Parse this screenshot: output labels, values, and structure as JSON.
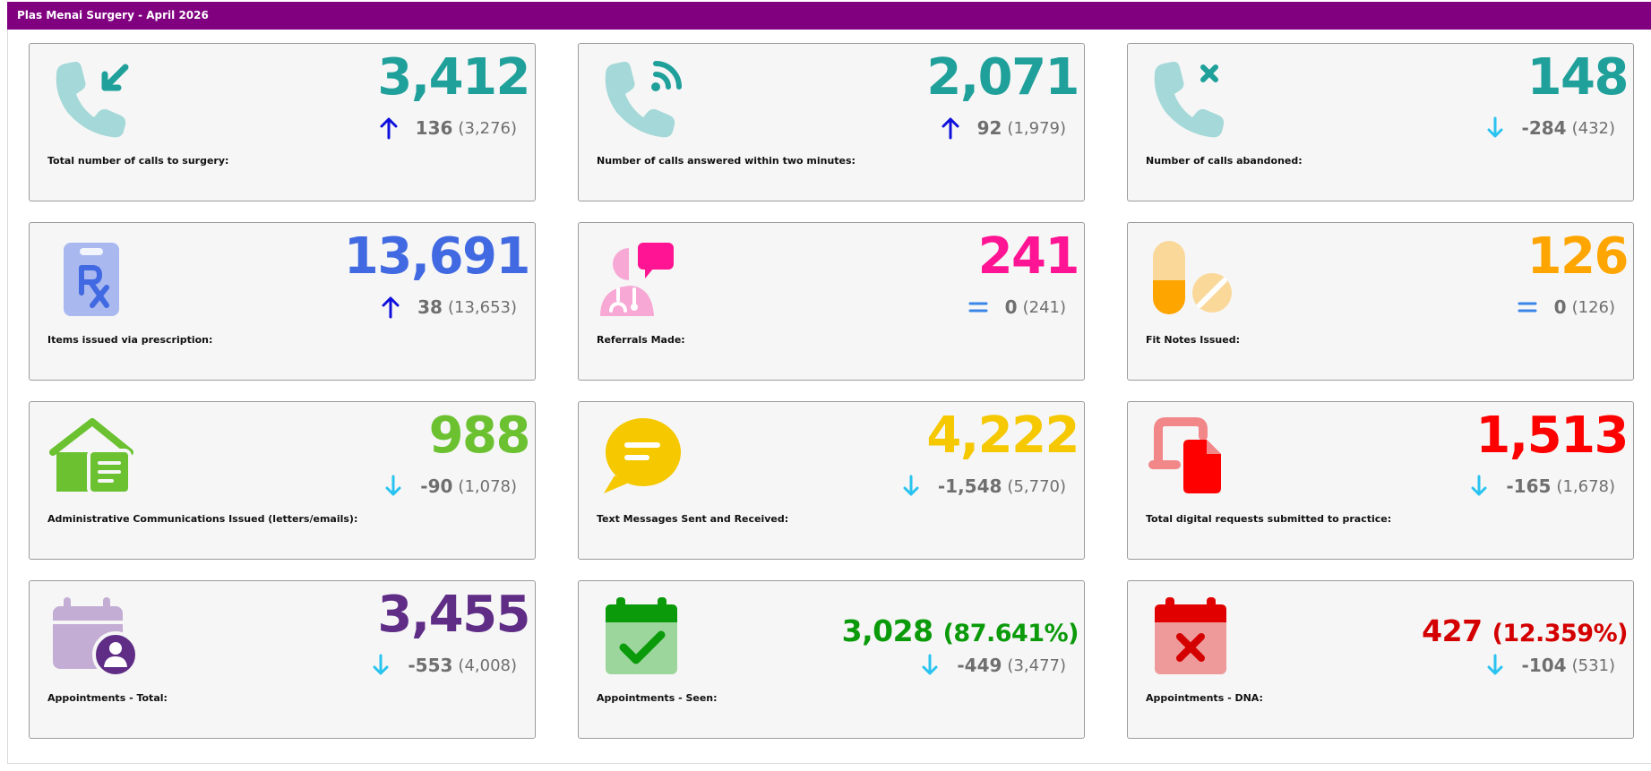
{
  "header": {
    "title": "Plas Menai Surgery - April 2026",
    "color": "#800080"
  },
  "cards": [
    {
      "value": "3,412",
      "delta": "136",
      "prev": "(3,276)",
      "trend": "up",
      "label": "Total number of calls to surgery:",
      "color": "#20a09a",
      "icon": "phone-incoming-icon"
    },
    {
      "value": "2,071",
      "delta": "92",
      "prev": "(1,979)",
      "trend": "up",
      "label": "Number of calls answered within two minutes:",
      "color": "#20a09a",
      "icon": "phone-signal-icon"
    },
    {
      "value": "148",
      "delta": "-284",
      "prev": "(432)",
      "trend": "down",
      "label": "Number of calls abandoned:",
      "color": "#20a09a",
      "icon": "phone-missed-icon"
    },
    {
      "value": "13,691",
      "delta": "38",
      "prev": "(13,653)",
      "trend": "up",
      "label": "Items issued via prescription:",
      "color": "#4169e1",
      "icon": "prescription-clipboard-icon"
    },
    {
      "value": "241",
      "delta": "0",
      "prev": "(241)",
      "trend": "equal",
      "label": "Referrals Made:",
      "color": "#ff1493",
      "icon": "doctor-referral-icon"
    },
    {
      "value": "126",
      "delta": "0",
      "prev": "(126)",
      "trend": "equal",
      "label": "Fit Notes Issued:",
      "color": "#ffa500",
      "icon": "pills-icon"
    },
    {
      "value": "988",
      "delta": "-90",
      "prev": "(1,078)",
      "trend": "down",
      "label": "Administrative Communications Issued (letters/emails):",
      "color": "#6bc130",
      "icon": "letter-house-icon"
    },
    {
      "value": "4,222",
      "delta": "-1,548",
      "prev": "(5,770)",
      "trend": "down",
      "label": "Text Messages Sent and Received:",
      "color": "#f5c800",
      "icon": "chat-bubble-icon"
    },
    {
      "value": "1,513",
      "delta": "-165",
      "prev": "(1,678)",
      "trend": "down",
      "label": "Total digital requests submitted to practice:",
      "color": "#ff0000",
      "icon": "digital-request-icon"
    },
    {
      "value": "3,455",
      "pct": "",
      "delta": "-553",
      "prev": "(4,008)",
      "trend": "down",
      "label": "Appointments - Total:",
      "color": "#5f2d86",
      "icon": "calendar-user-icon"
    },
    {
      "value": "3,028",
      "pct": "(87.641%)",
      "delta": "-449",
      "prev": "(3,477)",
      "trend": "down",
      "label": "Appointments - Seen:",
      "color": "#0a9a0a",
      "icon": "calendar-check-icon"
    },
    {
      "value": "427",
      "pct": "(12.359%)",
      "delta": "-104",
      "prev": "(531)",
      "trend": "down",
      "label": "Appointments - DNA:",
      "color": "#d40000",
      "icon": "calendar-x-icon"
    }
  ],
  "trend_colors": {
    "up": "#1010dd",
    "down": "#29c3f0",
    "equal": "#3a86e8"
  }
}
